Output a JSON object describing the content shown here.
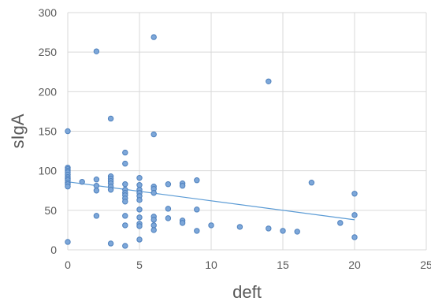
{
  "chart_data": {
    "type": "scatter",
    "title": "",
    "xlabel": "deft",
    "ylabel": "sIgA",
    "xlim": [
      0,
      25
    ],
    "ylim": [
      0,
      300
    ],
    "x_ticks": [
      0,
      5,
      10,
      15,
      20,
      25
    ],
    "y_ticks": [
      0,
      50,
      100,
      150,
      200,
      250,
      300
    ],
    "grid": true,
    "legend": "none",
    "colors": {
      "point": "#7da7d9",
      "point_edge": "#4f81bd",
      "trendline": "#5b9bd5",
      "grid": "#d9d9d9",
      "text": "#595959"
    },
    "series": [
      {
        "points": [
          [
            0,
            150
          ],
          [
            0,
            104
          ],
          [
            0,
            102
          ],
          [
            0,
            100
          ],
          [
            0,
            98
          ],
          [
            0,
            95
          ],
          [
            0,
            92
          ],
          [
            0,
            90
          ],
          [
            0,
            88
          ],
          [
            0,
            85
          ],
          [
            0,
            83
          ],
          [
            0,
            80
          ],
          [
            0,
            10
          ],
          [
            1,
            86
          ],
          [
            2,
            251
          ],
          [
            2,
            89
          ],
          [
            2,
            81
          ],
          [
            2,
            75
          ],
          [
            2,
            43
          ],
          [
            3,
            166
          ],
          [
            3,
            93
          ],
          [
            3,
            90
          ],
          [
            3,
            87
          ],
          [
            3,
            84
          ],
          [
            3,
            80
          ],
          [
            3,
            76
          ],
          [
            3,
            8
          ],
          [
            4,
            123
          ],
          [
            4,
            109
          ],
          [
            4,
            83
          ],
          [
            4,
            76
          ],
          [
            4,
            72
          ],
          [
            4,
            69
          ],
          [
            4,
            65
          ],
          [
            4,
            61
          ],
          [
            4,
            43
          ],
          [
            4,
            31
          ],
          [
            4,
            5
          ],
          [
            5,
            91
          ],
          [
            5,
            82
          ],
          [
            5,
            76
          ],
          [
            5,
            72
          ],
          [
            5,
            68
          ],
          [
            5,
            63
          ],
          [
            5,
            51
          ],
          [
            5,
            41
          ],
          [
            5,
            33
          ],
          [
            5,
            30
          ],
          [
            5,
            13
          ],
          [
            6,
            269
          ],
          [
            6,
            146
          ],
          [
            6,
            80
          ],
          [
            6,
            77
          ],
          [
            6,
            72
          ],
          [
            6,
            42
          ],
          [
            6,
            38
          ],
          [
            6,
            31
          ],
          [
            6,
            25
          ],
          [
            7,
            83
          ],
          [
            7,
            52
          ],
          [
            7,
            40
          ],
          [
            8,
            84
          ],
          [
            8,
            81
          ],
          [
            8,
            37
          ],
          [
            8,
            34
          ],
          [
            9,
            88
          ],
          [
            9,
            51
          ],
          [
            9,
            24
          ],
          [
            10,
            31
          ],
          [
            12,
            29
          ],
          [
            14,
            213
          ],
          [
            14,
            27
          ],
          [
            15,
            24
          ],
          [
            16,
            23
          ],
          [
            17,
            85
          ],
          [
            19,
            34
          ],
          [
            20,
            71
          ],
          [
            20,
            44
          ],
          [
            20,
            16
          ]
        ]
      }
    ],
    "trendline": {
      "type": "linear",
      "from": [
        0,
        86
      ],
      "to": [
        20,
        38
      ]
    }
  }
}
